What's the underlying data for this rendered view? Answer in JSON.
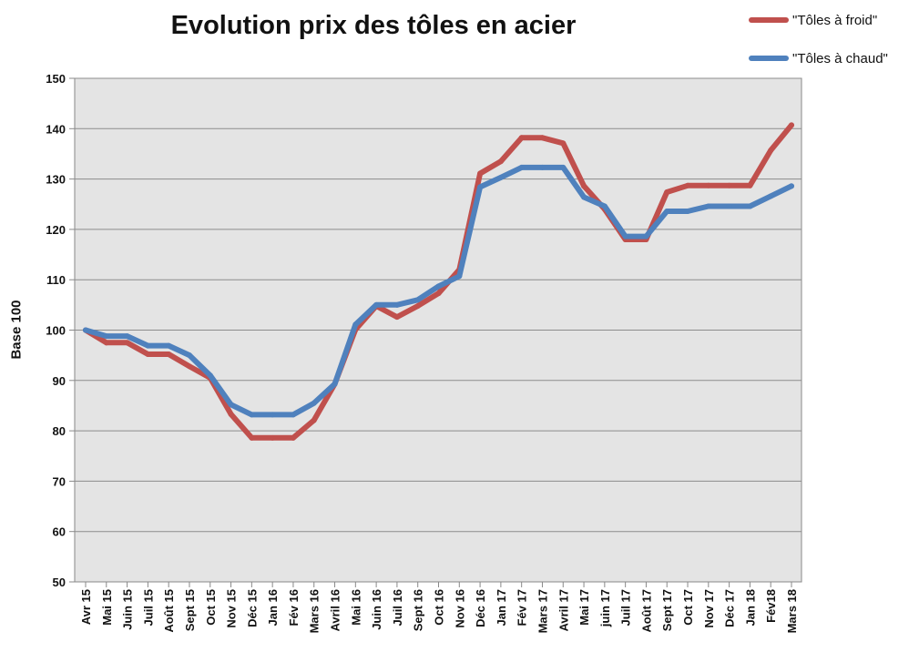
{
  "chart_data": {
    "type": "line",
    "title": "Evolution prix des tôles en acier",
    "xlabel": "",
    "ylabel": "Base 100",
    "ylim": [
      50,
      150
    ],
    "yticks": [
      "50",
      "60",
      "70",
      "80",
      "90",
      "100",
      "110",
      "120",
      "130",
      "140",
      "150"
    ],
    "grid": true,
    "legend_position": "top-right",
    "categories": [
      "Avr 15",
      "Mai 15",
      "Juin 15",
      "Juil 15",
      "Août 15",
      "Sept 15",
      "Oct 15",
      "Nov 15",
      "Déc 15",
      "Jan 16",
      "Fév 16",
      "Mars 16",
      "Avril 16",
      "Mai 16",
      "Juin 16",
      "Juil 16",
      "Sept 16",
      "Oct 16",
      "Nov 16",
      "Déc 16",
      "Jan 17",
      "Fév 17",
      "Mars 17",
      "Avril 17",
      "Mai 17",
      "juin 17",
      "Juil 17",
      "Août 17",
      "Sept 17",
      "Oct 17",
      "Nov 17",
      "Déc 17",
      "Jan 18",
      "Fév18",
      "Mars 18"
    ],
    "series": [
      {
        "name": "\"Tôles à froid\"",
        "color": "#c0504d",
        "values": [
          100,
          97.5,
          97.5,
          95.2,
          95.2,
          92.8,
          90.5,
          83.3,
          78.6,
          78.6,
          78.6,
          82.1,
          89.3,
          100.1,
          104.8,
          102.6,
          104.8,
          107.3,
          112,
          131.1,
          133.5,
          138.2,
          138.2,
          137.1,
          128.6,
          124,
          118,
          118,
          127.4,
          128.7,
          128.7,
          128.7,
          128.7,
          135.7,
          140.7
        ]
      },
      {
        "name": "\"Tôles à chaud\"",
        "color": "#4f81bd",
        "values": [
          100,
          98.8,
          98.8,
          96.9,
          96.9,
          95,
          91,
          85.2,
          83.2,
          83.2,
          83.2,
          85.5,
          89.3,
          101.1,
          105,
          105,
          106,
          108.7,
          110.7,
          128.4,
          130.3,
          132.3,
          132.3,
          132.3,
          126.4,
          124.6,
          118.6,
          118.6,
          123.6,
          123.6,
          124.6,
          124.6,
          124.6,
          126.6,
          128.6
        ]
      }
    ]
  }
}
